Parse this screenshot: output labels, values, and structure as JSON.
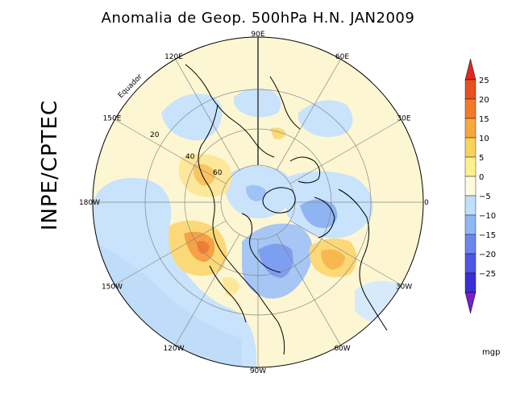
{
  "title": "Anomalia de Geop. 500hPa H.N. JAN2009",
  "side_label": "INPE/CPTEC",
  "equator_label": "Equador",
  "longitude_labels": [
    {
      "text": "90E",
      "deg": 90
    },
    {
      "text": "60E",
      "deg": 60
    },
    {
      "text": "30E",
      "deg": 30
    },
    {
      "text": "0",
      "deg": 0
    },
    {
      "text": "30W",
      "deg": -30
    },
    {
      "text": "60W",
      "deg": -60
    },
    {
      "text": "90W",
      "deg": -90
    },
    {
      "text": "120W",
      "deg": -120
    },
    {
      "text": "150W",
      "deg": -150
    },
    {
      "text": "180W",
      "deg": 180
    },
    {
      "text": "150E",
      "deg": 150
    },
    {
      "text": "120E",
      "deg": 120
    }
  ],
  "latitude_labels": [
    "20",
    "40",
    "60"
  ],
  "colorbar": {
    "unit": "mgp",
    "levels": [
      {
        "label": "25",
        "color": "#e8501c"
      },
      {
        "label": "20",
        "color": "#f47a2a"
      },
      {
        "label": "15",
        "color": "#f8a83a"
      },
      {
        "label": "10",
        "color": "#fbd25a"
      },
      {
        "label": "5",
        "color": "#fdf08e"
      },
      {
        "label": "0",
        "color": "#fefbdc"
      },
      {
        "label": "−5",
        "color": "#bfe0fa"
      },
      {
        "label": "−10",
        "color": "#8fb8f6"
      },
      {
        "label": "−15",
        "color": "#6c86ee"
      },
      {
        "label": "−20",
        "color": "#4f55e8"
      },
      {
        "label": "−25",
        "color": "#3a2fd6"
      }
    ],
    "top_arrow_color": "#e0281c",
    "bottom_arrow_color": "#7a1ec8"
  }
}
